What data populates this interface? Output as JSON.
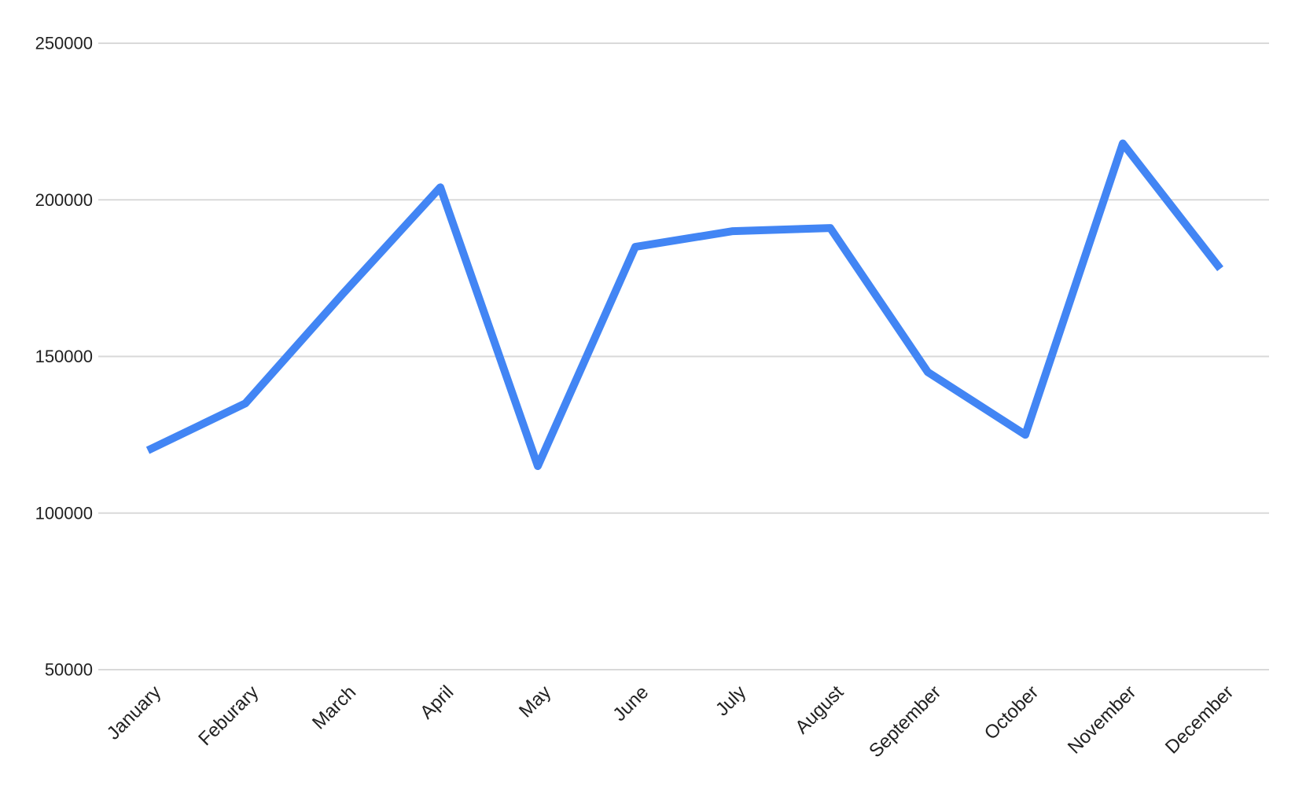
{
  "chart_data": {
    "type": "line",
    "title": "",
    "xlabel": "",
    "ylabel": "",
    "categories": [
      "January",
      "Feburary",
      "March",
      "April",
      "May",
      "June",
      "July",
      "August",
      "September",
      "October",
      "November",
      "December"
    ],
    "values": [
      120000,
      135000,
      170000,
      204000,
      115000,
      185000,
      190000,
      191000,
      145000,
      125000,
      218000,
      178000
    ],
    "ylim": [
      50000,
      250000
    ],
    "yticks": [
      50000,
      100000,
      150000,
      200000,
      250000
    ],
    "ytick_labels": [
      "50000",
      "100000",
      "150000",
      "200000",
      "250000"
    ],
    "grid": true,
    "legend_position": "none",
    "x_label_rotation_deg": -45,
    "colors": {
      "line": "#4285f4",
      "gridline": "#d9d9d9",
      "axis_label": "#212121",
      "background": "#ffffff"
    }
  }
}
